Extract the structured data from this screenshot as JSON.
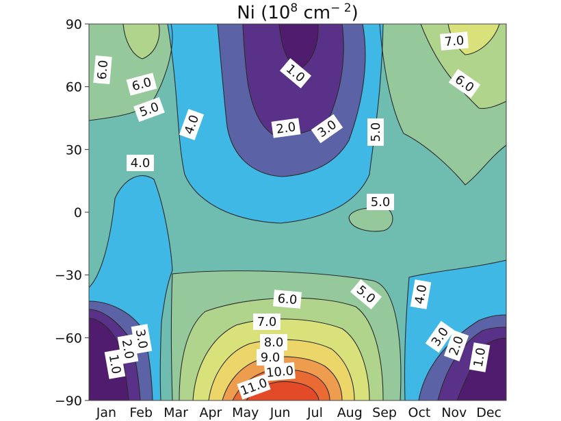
{
  "chart_data": {
    "type": "contour",
    "title": "Ni (10",
    "title_sup": "8",
    "title_unit": " cm",
    "title_unit_sup": "− 2",
    "title_close": ")",
    "x_categories": [
      "Jan",
      "Feb",
      "Mar",
      "Apr",
      "May",
      "Jun",
      "Jul",
      "Aug",
      "Sep",
      "Oct",
      "Nov",
      "Dec"
    ],
    "y_ticks": [
      "90",
      "60",
      "30",
      "0",
      "−30",
      "−60",
      "−90"
    ],
    "ylim": [
      -90,
      90
    ],
    "contour_levels": [
      1.0,
      2.0,
      3.0,
      4.0,
      5.0,
      6.0,
      7.0,
      8.0,
      9.0,
      10.0,
      11.0
    ],
    "colormap": {
      "0": "#4f1c6e",
      "1": "#5a3188",
      "2": "#5b62a6",
      "3": "#3fb8e6",
      "4": "#6fbcb0",
      "5": "#95c99c",
      "6": "#b0d48c",
      "7": "#d8e17a",
      "8": "#ecd66a",
      "9": "#ee9c4e",
      "10": "#ea6a33",
      "11": "#e24a28"
    },
    "contour_labels": [
      "6.0",
      "6.0",
      "5.0",
      "4.0",
      "4.0",
      "1.0",
      "2.0",
      "3.0",
      "5.0",
      "5.0",
      "7.0",
      "6.0",
      "6.0",
      "5.0",
      "4.0",
      "7.0",
      "8.0",
      "9.0",
      "10.0",
      "11.0",
      "3.0",
      "2.0",
      "1.0",
      "3.0",
      "2.0",
      "1.0"
    ]
  }
}
